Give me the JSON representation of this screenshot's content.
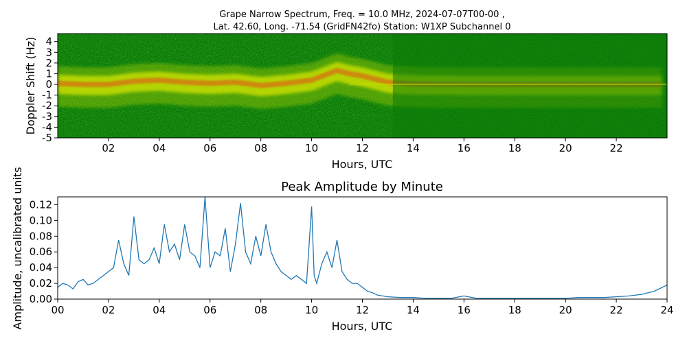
{
  "figure": {
    "title_line1": "Grape Narrow Spectrum, Freq. = 10.0 MHz, 2024-07-07T00-00 ,",
    "title_line2": "Lat.  42.60, Long. -71.54 (GridFN42fo) Station: W1XP Subchannel 0"
  },
  "chart_data": [
    {
      "type": "heatmap",
      "title": "",
      "xlabel": "Hours, UTC",
      "ylabel": "Doppler Shift (Hz)",
      "xlim": [
        0,
        24
      ],
      "ylim": [
        -5,
        5
      ],
      "x_ticks": [
        "02",
        "04",
        "06",
        "08",
        "10",
        "12",
        "14",
        "16",
        "18",
        "20",
        "22"
      ],
      "y_ticks": [
        "4",
        "3",
        "2",
        "1",
        "0",
        "-1",
        "-2",
        "-3",
        "-4",
        "-5"
      ],
      "colors": {
        "background": "#0a7a06",
        "mid": "#c8e000",
        "high": "#f5f500",
        "peak": "#e8401a"
      },
      "doppler_trace": {
        "x": [
          0,
          1,
          2,
          3,
          4,
          5,
          6,
          7,
          8,
          9,
          10,
          11,
          11.5,
          12,
          12.5,
          13,
          14,
          16,
          18,
          20,
          22,
          23.8
        ],
        "y": [
          0.1,
          0.0,
          0.0,
          0.3,
          0.4,
          0.2,
          0.1,
          0.2,
          -0.1,
          0.1,
          0.4,
          1.3,
          1.0,
          0.8,
          0.5,
          0.2,
          0.05,
          0.0,
          0.0,
          0.0,
          0.0,
          0.0
        ]
      }
    },
    {
      "type": "line",
      "title": "Peak Amplitude by Minute",
      "xlabel": "Hours, UTC",
      "ylabel": "Amplitude, uncalibrated units",
      "xlim": [
        0,
        24
      ],
      "ylim": [
        0,
        0.13
      ],
      "x_ticks": [
        "00",
        "02",
        "04",
        "06",
        "08",
        "10",
        "12",
        "14",
        "16",
        "18",
        "20",
        "22",
        "24"
      ],
      "y_ticks": [
        "0.00",
        "0.02",
        "0.04",
        "0.06",
        "0.08",
        "0.10",
        "0.12"
      ],
      "line_color": "#1f77b4",
      "series": [
        {
          "x": [
            0,
            0.2,
            0.4,
            0.6,
            0.8,
            1.0,
            1.2,
            1.4,
            1.6,
            1.8,
            2.0,
            2.2,
            2.4,
            2.6,
            2.8,
            3.0,
            3.2,
            3.4,
            3.6,
            3.8,
            4.0,
            4.2,
            4.4,
            4.6,
            4.8,
            5.0,
            5.2,
            5.4,
            5.6,
            5.8,
            6.0,
            6.2,
            6.4,
            6.6,
            6.8,
            7.0,
            7.2,
            7.4,
            7.6,
            7.8,
            8.0,
            8.2,
            8.4,
            8.6,
            8.8,
            9.0,
            9.2,
            9.4,
            9.6,
            9.8,
            10.0,
            10.1,
            10.2,
            10.4,
            10.6,
            10.8,
            11.0,
            11.2,
            11.4,
            11.6,
            11.8,
            12.0,
            12.2,
            12.4,
            12.6,
            12.8,
            13.0,
            13.5,
            14.0,
            14.5,
            15.0,
            15.5,
            16.0,
            16.5,
            17.0,
            17.5,
            18.0,
            18.5,
            19.0,
            19.5,
            20.0,
            20.5,
            21.0,
            21.5,
            22.0,
            22.5,
            23.0,
            23.5,
            24.0
          ],
          "values": [
            0.015,
            0.02,
            0.018,
            0.013,
            0.022,
            0.025,
            0.018,
            0.02,
            0.025,
            0.03,
            0.035,
            0.04,
            0.075,
            0.045,
            0.03,
            0.105,
            0.05,
            0.045,
            0.05,
            0.065,
            0.045,
            0.095,
            0.06,
            0.07,
            0.05,
            0.095,
            0.06,
            0.055,
            0.04,
            0.13,
            0.04,
            0.06,
            0.055,
            0.09,
            0.035,
            0.07,
            0.122,
            0.06,
            0.045,
            0.08,
            0.055,
            0.095,
            0.06,
            0.045,
            0.035,
            0.03,
            0.025,
            0.03,
            0.025,
            0.02,
            0.118,
            0.03,
            0.02,
            0.045,
            0.06,
            0.04,
            0.075,
            0.035,
            0.025,
            0.02,
            0.02,
            0.015,
            0.01,
            0.008,
            0.005,
            0.004,
            0.003,
            0.002,
            0.002,
            0.001,
            0.001,
            0.001,
            0.004,
            0.001,
            0.001,
            0.001,
            0.001,
            0.001,
            0.001,
            0.001,
            0.001,
            0.002,
            0.002,
            0.002,
            0.003,
            0.004,
            0.006,
            0.01,
            0.018
          ]
        }
      ]
    }
  ]
}
